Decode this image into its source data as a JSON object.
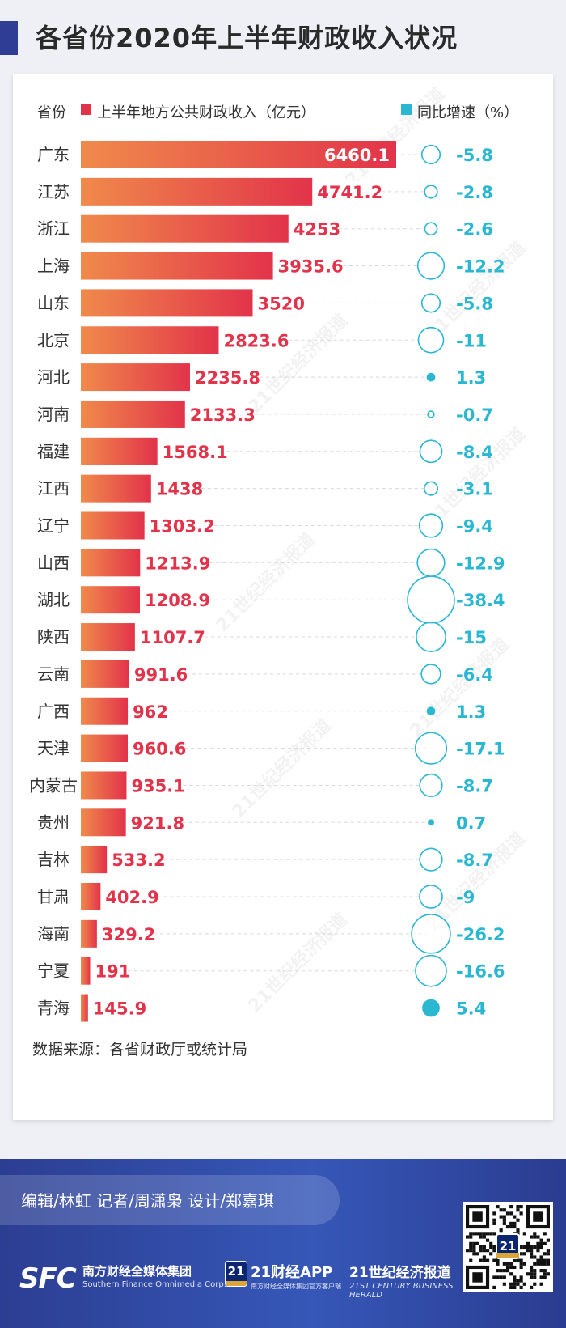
{
  "title": "各省份2020年上半年财政收入状况",
  "chart_data": {
    "type": "bar",
    "header_category": "省份",
    "legend": [
      {
        "name": "上半年地方公共财政收入（亿元）",
        "color": "#e2334a"
      },
      {
        "name": "同比增速（%）",
        "color": "#2ab7d2"
      }
    ],
    "categories": [
      "广东",
      "江苏",
      "浙江",
      "上海",
      "山东",
      "北京",
      "河北",
      "河南",
      "福建",
      "江西",
      "辽宁",
      "山西",
      "湖北",
      "陕西",
      "云南",
      "广西",
      "天津",
      "内蒙古",
      "贵州",
      "吉林",
      "甘肃",
      "海南",
      "宁夏",
      "青海"
    ],
    "series": [
      {
        "name": "上半年地方公共财政收入（亿元）",
        "labels": [
          "6460.1",
          "4741.2",
          "4253",
          "3935.6",
          "3520",
          "2823.6",
          "2235.8",
          "2133.3",
          "1568.1",
          "1438",
          "1303.2",
          "1213.9",
          "1208.9",
          "1107.7",
          "991.6",
          "962",
          "960.6",
          "935.1",
          "921.8",
          "533.2",
          "402.9",
          "329.2",
          "191",
          "145.9"
        ],
        "values": [
          6460.1,
          4741.2,
          4253,
          3935.6,
          3520,
          2823.6,
          2235.8,
          2133.3,
          1568.1,
          1438,
          1303.2,
          1213.9,
          1208.9,
          1107.7,
          991.6,
          962,
          960.6,
          935.1,
          921.8,
          533.2,
          402.9,
          329.2,
          191,
          145.9
        ]
      },
      {
        "name": "同比增速（%）",
        "labels": [
          "-5.8",
          "-2.8",
          "-2.6",
          "-12.2",
          "-5.8",
          "-11",
          "1.3",
          "-0.7",
          "-8.4",
          "-3.1",
          "-9.4",
          "-12.9",
          "-38.4",
          "-15",
          "-6.4",
          "1.3",
          "-17.1",
          "-8.7",
          "0.7",
          "-8.7",
          "-9",
          "-26.2",
          "-16.6",
          "5.4"
        ],
        "values": [
          -5.8,
          -2.8,
          -2.6,
          -12.2,
          -5.8,
          -11,
          1.3,
          -0.7,
          -8.4,
          -3.1,
          -9.4,
          -12.9,
          -38.4,
          -15,
          -6.4,
          1.3,
          -17.1,
          -8.7,
          0.7,
          -8.7,
          -9,
          -26.2,
          -16.6,
          5.4
        ]
      }
    ],
    "colors": {
      "bar_start": "#f08a4b",
      "bar_end": "#e2334a",
      "growth": "#2ab7d2"
    },
    "watermark": "21世纪经济报道"
  },
  "source": "数据来源：各省财政厅或统计局",
  "footer": {
    "credits": "编辑/林虹  记者/周潇枭  设计/郑嘉琪",
    "logo_sfc": "SFC",
    "logo_sfc_cn": "南方财经全媒体集团",
    "logo_sfc_en": "Southern Finance Omnimedia Corp.",
    "logo_21_badge": "21",
    "logo_app": "21财经APP",
    "logo_app_sub": "南方财经全媒体集团官方客户端",
    "logo_herald": "21世纪经济报道",
    "logo_herald_en": "21ST CENTURY BUSINESS HERALD",
    "qr_badge": "21"
  }
}
